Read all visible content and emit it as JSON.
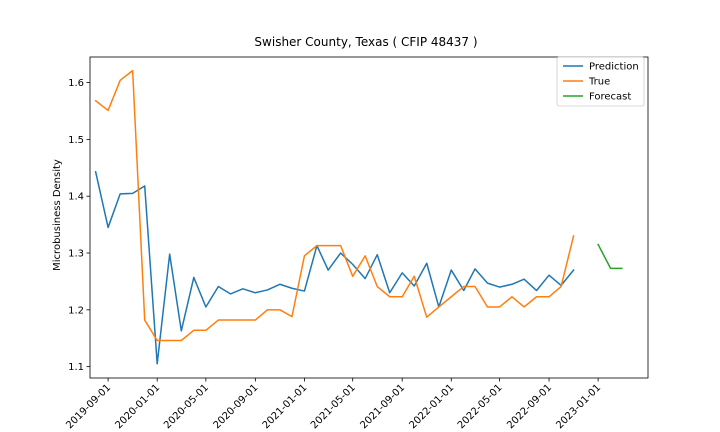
{
  "chart_data": {
    "type": "line",
    "title": "Swisher County, Texas ( CFIP 48437 )",
    "xlabel": "",
    "ylabel": "Microbusiness Density",
    "ylim": [
      1.08,
      1.645
    ],
    "xlim": [
      "2019-07-18",
      "2023-05-05"
    ],
    "grid": false,
    "legend_position": "top-right",
    "y_ticks": [
      1.1,
      1.2,
      1.3,
      1.4,
      1.5,
      1.6
    ],
    "x_ticks": [
      "2019-09-01",
      "2020-01-01",
      "2020-05-01",
      "2020-09-01",
      "2021-01-01",
      "2021-05-01",
      "2021-09-01",
      "2022-01-01",
      "2022-05-01",
      "2022-09-01",
      "2023-01-01"
    ],
    "series": [
      {
        "name": "Prediction",
        "color": "#1f77b4",
        "points": [
          [
            "2019-08-01",
            1.443
          ],
          [
            "2019-09-01",
            1.345
          ],
          [
            "2019-10-01",
            1.404
          ],
          [
            "2019-11-01",
            1.405
          ],
          [
            "2019-12-01",
            1.418
          ],
          [
            "2020-01-01",
            1.105
          ],
          [
            "2020-02-01",
            1.298
          ],
          [
            "2020-03-01",
            1.163
          ],
          [
            "2020-04-01",
            1.257
          ],
          [
            "2020-05-01",
            1.205
          ],
          [
            "2020-06-01",
            1.241
          ],
          [
            "2020-07-01",
            1.228
          ],
          [
            "2020-08-01",
            1.237
          ],
          [
            "2020-09-01",
            1.23
          ],
          [
            "2020-10-01",
            1.235
          ],
          [
            "2020-11-01",
            1.245
          ],
          [
            "2020-12-01",
            1.238
          ],
          [
            "2021-01-01",
            1.233
          ],
          [
            "2021-02-01",
            1.313
          ],
          [
            "2021-03-01",
            1.27
          ],
          [
            "2021-04-01",
            1.3
          ],
          [
            "2021-05-01",
            1.28
          ],
          [
            "2021-06-01",
            1.255
          ],
          [
            "2021-07-01",
            1.297
          ],
          [
            "2021-08-01",
            1.23
          ],
          [
            "2021-09-01",
            1.265
          ],
          [
            "2021-10-01",
            1.242
          ],
          [
            "2021-11-01",
            1.282
          ],
          [
            "2021-12-01",
            1.205
          ],
          [
            "2022-01-01",
            1.27
          ],
          [
            "2022-02-01",
            1.234
          ],
          [
            "2022-03-01",
            1.272
          ],
          [
            "2022-04-01",
            1.247
          ],
          [
            "2022-05-01",
            1.24
          ],
          [
            "2022-06-01",
            1.245
          ],
          [
            "2022-07-01",
            1.254
          ],
          [
            "2022-08-01",
            1.234
          ],
          [
            "2022-09-01",
            1.261
          ],
          [
            "2022-10-01",
            1.243
          ],
          [
            "2022-11-01",
            1.27
          ]
        ]
      },
      {
        "name": "True",
        "color": "#ff7f0e",
        "points": [
          [
            "2019-08-01",
            1.568
          ],
          [
            "2019-09-01",
            1.551
          ],
          [
            "2019-10-01",
            1.604
          ],
          [
            "2019-11-01",
            1.621
          ],
          [
            "2019-12-01",
            1.182
          ],
          [
            "2020-01-01",
            1.146
          ],
          [
            "2020-02-01",
            1.146
          ],
          [
            "2020-03-01",
            1.146
          ],
          [
            "2020-04-01",
            1.164
          ],
          [
            "2020-05-01",
            1.164
          ],
          [
            "2020-06-01",
            1.182
          ],
          [
            "2020-07-01",
            1.182
          ],
          [
            "2020-08-01",
            1.182
          ],
          [
            "2020-09-01",
            1.182
          ],
          [
            "2020-10-01",
            1.2
          ],
          [
            "2020-11-01",
            1.2
          ],
          [
            "2020-12-01",
            1.188
          ],
          [
            "2021-01-01",
            1.295
          ],
          [
            "2021-02-01",
            1.313
          ],
          [
            "2021-03-01",
            1.313
          ],
          [
            "2021-04-01",
            1.313
          ],
          [
            "2021-05-01",
            1.259
          ],
          [
            "2021-06-01",
            1.295
          ],
          [
            "2021-07-01",
            1.241
          ],
          [
            "2021-08-01",
            1.223
          ],
          [
            "2021-09-01",
            1.223
          ],
          [
            "2021-10-01",
            1.259
          ],
          [
            "2021-11-01",
            1.187
          ],
          [
            "2021-12-01",
            1.205
          ],
          [
            "2022-01-01",
            1.223
          ],
          [
            "2022-02-01",
            1.241
          ],
          [
            "2022-03-01",
            1.241
          ],
          [
            "2022-04-01",
            1.205
          ],
          [
            "2022-05-01",
            1.205
          ],
          [
            "2022-06-01",
            1.223
          ],
          [
            "2022-07-01",
            1.205
          ],
          [
            "2022-08-01",
            1.223
          ],
          [
            "2022-09-01",
            1.223
          ],
          [
            "2022-10-01",
            1.241
          ],
          [
            "2022-11-01",
            1.33
          ]
        ]
      },
      {
        "name": "Forecast",
        "color": "#2ca02c",
        "points": [
          [
            "2023-01-01",
            1.315
          ],
          [
            "2023-02-01",
            1.273
          ],
          [
            "2023-03-01",
            1.273
          ]
        ]
      }
    ]
  }
}
